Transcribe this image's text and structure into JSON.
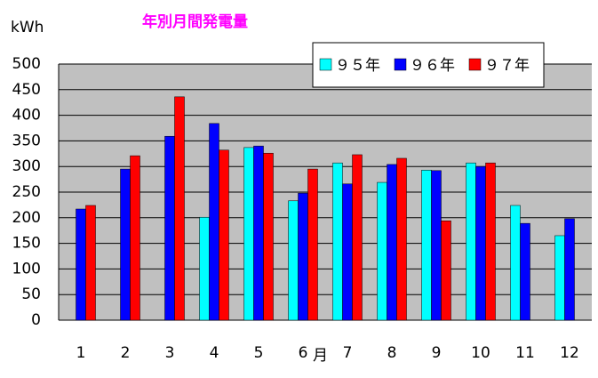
{
  "chart_data": {
    "type": "bar",
    "title": "年別月間発電量",
    "y_label": "kWh",
    "x_label": "月",
    "categories": [
      "1",
      "2",
      "3",
      "4",
      "5",
      "6",
      "7",
      "8",
      "9",
      "10",
      "11",
      "12"
    ],
    "series": [
      {
        "name": "９５年",
        "color": "#00ffff",
        "values": [
          null,
          null,
          null,
          201,
          337,
          233,
          307,
          269,
          293,
          307,
          224,
          165
        ]
      },
      {
        "name": "９６年",
        "color": "#0000ff",
        "values": [
          217,
          295,
          359,
          384,
          340,
          248,
          266,
          304,
          292,
          300,
          189,
          198
        ]
      },
      {
        "name": "９７年",
        "color": "#ff0000",
        "values": [
          224,
          321,
          436,
          332,
          326,
          295,
          323,
          316,
          194,
          307,
          null,
          null
        ]
      }
    ],
    "ylim": [
      0,
      500
    ],
    "yticks": [
      0,
      50,
      100,
      150,
      200,
      250,
      300,
      350,
      400,
      450,
      500
    ],
    "grid": true,
    "legend": "top-right",
    "background": "#c0c0c0"
  }
}
